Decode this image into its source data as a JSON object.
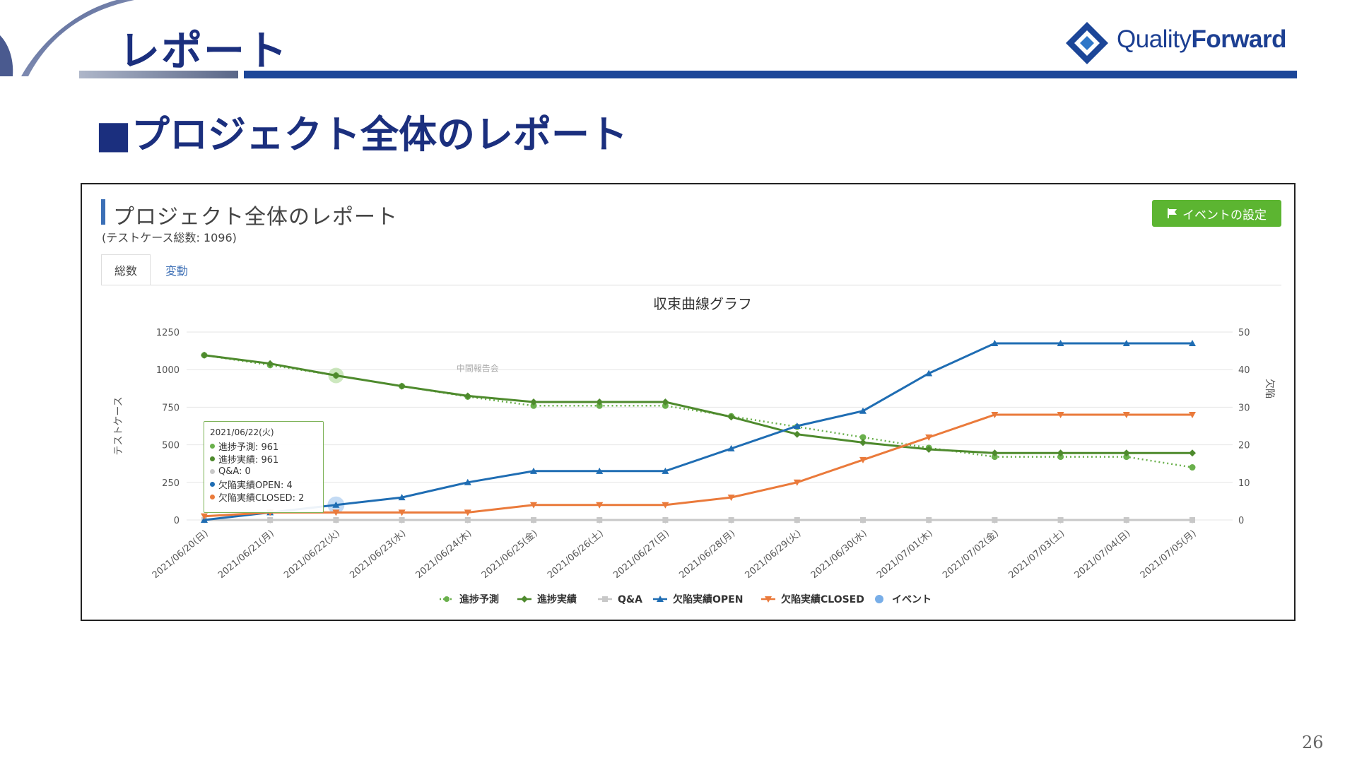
{
  "header": {
    "title": "レポート",
    "logo_prefix": "Quality",
    "logo_suffix": "Forward"
  },
  "section_title": "■プロジェクト全体のレポート",
  "panel": {
    "title": "プロジェクト全体のレポート",
    "subtitle": "(テストケース総数: 1096)",
    "event_button": "イベントの設定",
    "tabs": [
      {
        "label": "総数",
        "active": true
      },
      {
        "label": "変動",
        "active": false
      }
    ]
  },
  "tooltip": {
    "date": "2021/06/22(火)",
    "rows": [
      {
        "label": "進捗予測: 961",
        "color": "#6ab04c"
      },
      {
        "label": "進捗実績: 961",
        "color": "#4e8a2d"
      },
      {
        "label": "Q&A: 0",
        "color": "#c8c8c8"
      },
      {
        "label": "欠陥実績OPEN: 4",
        "color": "#1f6db3"
      },
      {
        "label": "欠陥実績CLOSED: 2",
        "color": "#ea7a3b"
      }
    ]
  },
  "page_number": "26",
  "colors": {
    "navy": "#1b2f7e",
    "accent_blue": "#1c4698",
    "button_green": "#5cb531"
  },
  "chart_data": {
    "type": "line",
    "title": "収束曲線グラフ",
    "ylabel": "テストケース",
    "y2label": "欠陥",
    "ylim": [
      0,
      1250
    ],
    "y_ticks": [
      0,
      250,
      500,
      750,
      1000,
      1250
    ],
    "y2lim": [
      0,
      50
    ],
    "y2_ticks": [
      0,
      10,
      20,
      30,
      40,
      50
    ],
    "annotation": "中間報告会",
    "categories": [
      "2021/06/20(日)",
      "2021/06/21(月)",
      "2021/06/22(火)",
      "2021/06/23(水)",
      "2021/06/24(木)",
      "2021/06/25(金)",
      "2021/06/26(土)",
      "2021/06/27(日)",
      "2021/06/28(月)",
      "2021/06/29(火)",
      "2021/06/30(水)",
      "2021/07/01(木)",
      "2021/07/02(金)",
      "2021/07/03(土)",
      "2021/07/04(日)",
      "2021/07/05(月)"
    ],
    "series": [
      {
        "name": "進捗予測",
        "axis": "left",
        "color": "#6ab04c",
        "dashed": true,
        "marker": "circle",
        "values": [
          1096,
          1030,
          961,
          890,
          820,
          760,
          760,
          760,
          690,
          620,
          550,
          480,
          420,
          420,
          420,
          350
        ]
      },
      {
        "name": "進捗実績",
        "axis": "left",
        "color": "#4e8a2d",
        "dashed": false,
        "marker": "diamond",
        "values": [
          1096,
          1040,
          961,
          890,
          825,
          785,
          785,
          785,
          685,
          570,
          515,
          470,
          445,
          445,
          445,
          445
        ]
      },
      {
        "name": "Q&A",
        "axis": "left",
        "color": "#c8c8c8",
        "dashed": false,
        "marker": "square",
        "values": [
          0,
          0,
          0,
          0,
          0,
          0,
          0,
          0,
          0,
          0,
          0,
          0,
          0,
          0,
          0,
          0
        ]
      },
      {
        "name": "欠陥実績OPEN",
        "axis": "right",
        "color": "#1f6db3",
        "dashed": false,
        "marker": "triangle",
        "values": [
          0,
          2,
          4,
          6,
          10,
          13,
          13,
          13,
          19,
          25,
          29,
          39,
          47,
          47,
          47,
          47
        ]
      },
      {
        "name": "欠陥実績CLOSED",
        "axis": "right",
        "color": "#ea7a3b",
        "dashed": false,
        "marker": "triangle-down",
        "values": [
          1,
          2,
          2,
          2,
          2,
          4,
          4,
          4,
          6,
          10,
          16,
          22,
          28,
          28,
          28,
          28
        ]
      }
    ],
    "legend": [
      "進捗予測",
      "進捗実績",
      "Q&A",
      "欠陥実績OPEN",
      "欠陥実績CLOSED",
      "イベント"
    ],
    "legend_position": "bottom"
  }
}
